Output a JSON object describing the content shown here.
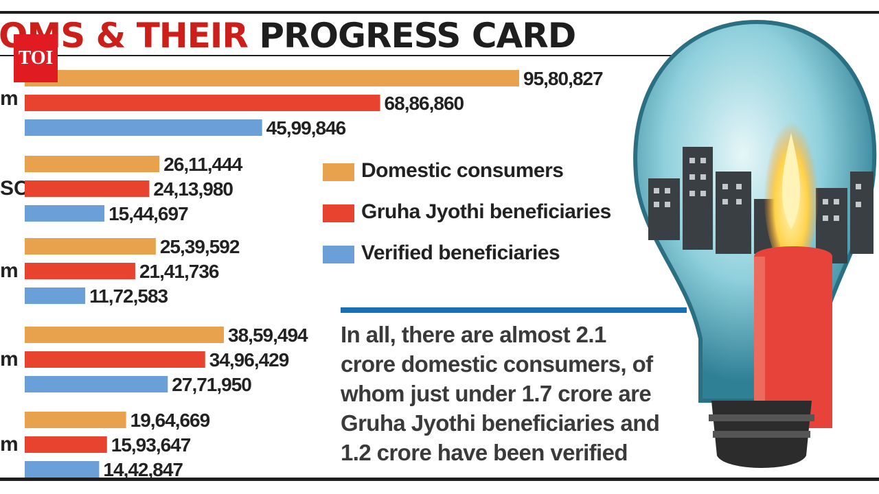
{
  "header": {
    "title_red": "OMS & THEIR",
    "title_black": " PROGRESS CARD",
    "logo": "TOI"
  },
  "row_labels": [
    "m",
    "SC",
    "m",
    "m",
    "m"
  ],
  "legend": [
    {
      "label": "Domestic consumers",
      "color": "#e8a24e"
    },
    {
      "label": "Gruha Jyothi beneficiaries",
      "color": "#e8432f"
    },
    {
      "label": "Verified beneficiaries",
      "color": "#6a9fd8"
    }
  ],
  "note": {
    "lines": [
      "In all, there are almost 2.1",
      "crore domestic consumers, of",
      "whom just under 1.7 crore are",
      "Gruha Jyothi beneficiaries and",
      "1.2 crore have been verified"
    ],
    "accent": "#1670b8"
  },
  "chart_data": {
    "type": "bar",
    "orientation": "horizontal",
    "categories": [
      "m",
      "SC",
      "m",
      "m",
      "m"
    ],
    "series": [
      {
        "name": "Domestic consumers",
        "color": "#e8a24e",
        "values": [
          9580827,
          2611444,
          2539592,
          3859494,
          1964669
        ],
        "labels": [
          "95,80,827",
          "26,11,444",
          "25,39,592",
          "38,59,494",
          "19,64,669"
        ]
      },
      {
        "name": "Gruha Jyothi beneficiaries",
        "color": "#e8432f",
        "values": [
          6886860,
          2413980,
          2141736,
          3496429,
          1593647
        ],
        "labels": [
          "68,86,860",
          "24,13,980",
          "21,41,736",
          "34,96,429",
          "15,93,647"
        ]
      },
      {
        "name": "Verified beneficiaries",
        "color": "#6a9fd8",
        "values": [
          4599846,
          1544697,
          1172583,
          2771950,
          1442847
        ],
        "labels": [
          "45,99,846",
          "15,44,697",
          "11,72,583",
          "27,71,950",
          "14,42,847"
        ]
      }
    ],
    "grid": false,
    "legend_position": "right"
  }
}
